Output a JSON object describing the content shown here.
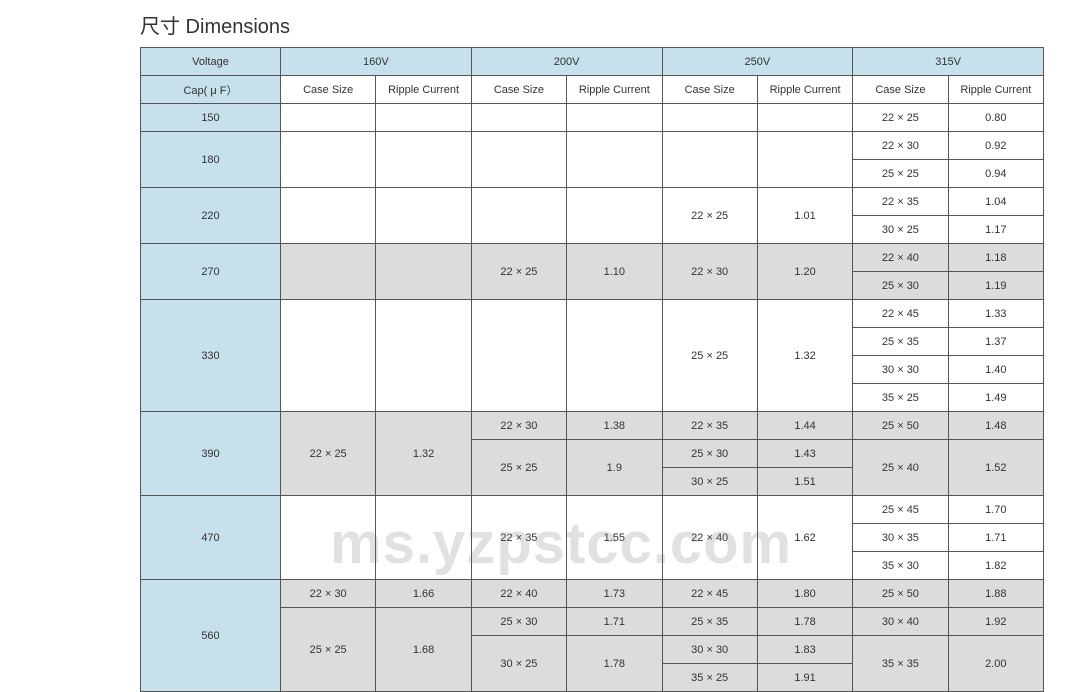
{
  "title": "尺寸  Dimensions",
  "watermark": "ms.yzpstcc.com",
  "header": {
    "voltage_label": "Voltage",
    "cap_label": "Cap( μ F）",
    "case_size": "Case Size",
    "ripple_current": "Ripple Current",
    "voltages": [
      "160V",
      "200V",
      "250V",
      "315V"
    ]
  },
  "rows": [
    {
      "cap": "150",
      "span": 1,
      "v160": [
        {
          "cs": "",
          "rc": "",
          "bg": "w",
          "rs": 1
        }
      ],
      "v200": [
        {
          "cs": "",
          "rc": "",
          "bg": "w",
          "rs": 1
        }
      ],
      "v250": [
        {
          "cs": "",
          "rc": "",
          "bg": "w",
          "rs": 1
        }
      ],
      "v315": [
        {
          "cs": "22 × 25",
          "rc": "0.80",
          "bg": "w",
          "rs": 1
        }
      ]
    },
    {
      "cap": "180",
      "span": 2,
      "v160": [
        {
          "cs": "",
          "rc": "",
          "bg": "w",
          "rs": 2
        }
      ],
      "v200": [
        {
          "cs": "",
          "rc": "",
          "bg": "w",
          "rs": 2
        }
      ],
      "v250": [
        {
          "cs": "",
          "rc": "",
          "bg": "w",
          "rs": 2
        }
      ],
      "v315": [
        {
          "cs": "22 × 30",
          "rc": "0.92",
          "bg": "w",
          "rs": 1
        },
        {
          "cs": "25 × 25",
          "rc": "0.94",
          "bg": "w",
          "rs": 1
        }
      ]
    },
    {
      "cap": "220",
      "span": 2,
      "v160": [
        {
          "cs": "",
          "rc": "",
          "bg": "w",
          "rs": 2
        }
      ],
      "v200": [
        {
          "cs": "",
          "rc": "",
          "bg": "w",
          "rs": 2
        }
      ],
      "v250": [
        {
          "cs": "22 × 25",
          "rc": "1.01",
          "bg": "w",
          "rs": 2
        }
      ],
      "v315": [
        {
          "cs": "22 × 35",
          "rc": "1.04",
          "bg": "w",
          "rs": 1
        },
        {
          "cs": "30 × 25",
          "rc": "1.17",
          "bg": "w",
          "rs": 1
        }
      ]
    },
    {
      "cap": "270",
      "span": 2,
      "v160": [
        {
          "cs": "",
          "rc": "",
          "bg": "g",
          "rs": 2
        }
      ],
      "v200": [
        {
          "cs": "22 × 25",
          "rc": "1.10",
          "bg": "g",
          "rs": 2
        }
      ],
      "v250": [
        {
          "cs": "22 × 30",
          "rc": "1.20",
          "bg": "g",
          "rs": 2
        }
      ],
      "v315": [
        {
          "cs": "22 × 40",
          "rc": "1.18",
          "bg": "g",
          "rs": 1
        },
        {
          "cs": "25 × 30",
          "rc": "1.19",
          "bg": "g",
          "rs": 1
        }
      ]
    },
    {
      "cap": "330",
      "span": 4,
      "v160": [
        {
          "cs": "",
          "rc": "",
          "bg": "w",
          "rs": 4
        }
      ],
      "v200": [
        {
          "cs": "",
          "rc": "",
          "bg": "w",
          "rs": 4
        }
      ],
      "v250": [
        {
          "cs": "25 × 25",
          "rc": "1.32",
          "bg": "w",
          "rs": 4
        }
      ],
      "v315": [
        {
          "cs": "22 × 45",
          "rc": "1.33",
          "bg": "w",
          "rs": 1
        },
        {
          "cs": "25 × 35",
          "rc": "1.37",
          "bg": "w",
          "rs": 1
        },
        {
          "cs": "30 × 30",
          "rc": "1.40",
          "bg": "w",
          "rs": 1
        },
        {
          "cs": "35 × 25",
          "rc": "1.49",
          "bg": "w",
          "rs": 1
        }
      ]
    },
    {
      "cap": "390",
      "span": 3,
      "v160": [
        {
          "cs": "22 × 25",
          "rc": "1.32",
          "bg": "g",
          "rs": 3
        }
      ],
      "v200": [
        {
          "cs": "22 × 30",
          "rc": "1.38",
          "bg": "g",
          "rs": 1
        },
        {
          "cs": "25 × 25",
          "rc": "1.9",
          "bg": "g",
          "rs": 2
        }
      ],
      "v250": [
        {
          "cs": "22 × 35",
          "rc": "1.44",
          "bg": "g",
          "rs": 1
        },
        {
          "cs": "25 × 30",
          "rc": "1.43",
          "bg": "g",
          "rs": 1
        },
        {
          "cs": "30 × 25",
          "rc": "1.51",
          "bg": "g",
          "rs": 1
        }
      ],
      "v315": [
        {
          "cs": "25 × 50",
          "rc": "1.48",
          "bg": "g",
          "rs": 1
        },
        {
          "cs": "25 × 40",
          "rc": "1.52",
          "bg": "g",
          "rs": 2
        }
      ]
    },
    {
      "cap": "470",
      "span": 3,
      "v160": [
        {
          "cs": "",
          "rc": "",
          "bg": "w",
          "rs": 3
        }
      ],
      "v200": [
        {
          "cs": "22 × 35",
          "rc": "1.55",
          "bg": "w",
          "rs": 3
        }
      ],
      "v250": [
        {
          "cs": "22 × 40",
          "rc": "1.62",
          "bg": "w",
          "rs": 3
        }
      ],
      "v315": [
        {
          "cs": "25 × 45",
          "rc": "1.70",
          "bg": "w",
          "rs": 1
        },
        {
          "cs": "30 × 35",
          "rc": "1.71",
          "bg": "w",
          "rs": 1
        },
        {
          "cs": "35 × 30",
          "rc": "1.82",
          "bg": "w",
          "rs": 1
        }
      ]
    },
    {
      "cap": "560",
      "span": 4,
      "v160": [
        {
          "cs": "22 × 30",
          "rc": "1.66",
          "bg": "g",
          "rs": 1
        },
        {
          "cs": "25 × 25",
          "rc": "1.68",
          "bg": "g",
          "rs": 3
        }
      ],
      "v200": [
        {
          "cs": "22 × 40",
          "rc": "1.73",
          "bg": "g",
          "rs": 1
        },
        {
          "cs": "25 × 30",
          "rc": "1.71",
          "bg": "g",
          "rs": 1
        },
        {
          "cs": "30 × 25",
          "rc": "1.78",
          "bg": "g",
          "rs": 2
        }
      ],
      "v250": [
        {
          "cs": "22 × 45",
          "rc": "1.80",
          "bg": "g",
          "rs": 1
        },
        {
          "cs": "25 × 35",
          "rc": "1.78",
          "bg": "g",
          "rs": 1
        },
        {
          "cs": "30 × 30",
          "rc": "1.83",
          "bg": "g",
          "rs": 1
        },
        {
          "cs": "35 × 25",
          "rc": "1.91",
          "bg": "g",
          "rs": 1
        }
      ],
      "v315": [
        {
          "cs": "25 × 50",
          "rc": "1.88",
          "bg": "g",
          "rs": 1
        },
        {
          "cs": "30 × 40",
          "rc": "1.92",
          "bg": "g",
          "rs": 1
        },
        {
          "cs": "35 × 35",
          "rc": "2.00",
          "bg": "g",
          "rs": 2
        }
      ]
    }
  ]
}
